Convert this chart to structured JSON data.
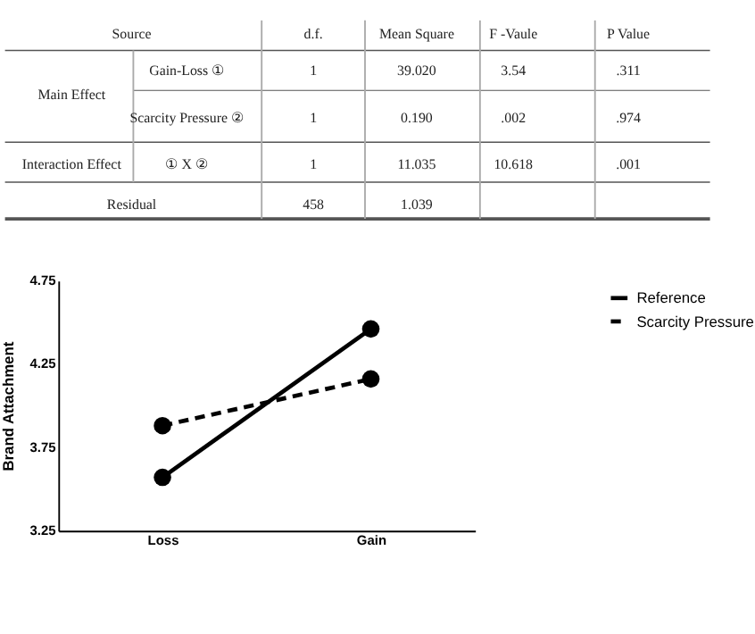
{
  "chart_data": {
    "type": "line",
    "annotations": [
      "Source",
      "d.f.",
      "Mean Square",
      "F -Vaule",
      "P  Value",
      "Main Effect",
      "Gain-Loss ①",
      "1",
      "39.020",
      "3.54",
      ".311",
      "Scarcity Pressure ②",
      "1",
      "0.190",
      ".002",
      ".974",
      "Interaction Effect",
      "①   X ②",
      "1",
      "11.035",
      "10.618",
      ".001",
      "Residual",
      "458",
      "1.039"
    ],
    "ylabel": "Brand Attachment",
    "categories": [
      "Loss",
      "Gain"
    ],
    "series": [
      {
        "name": "Reference",
        "color": "#000000",
        "values": [
          3.57,
          4.46
        ],
        "line_style": "solid"
      },
      {
        "name": "Scarcity Pressure",
        "color": "#000000",
        "values": [
          3.88,
          4.16
        ],
        "line_style": "dashed"
      }
    ],
    "ylim": [
      3.25,
      4.75
    ],
    "yticks": [
      3.25,
      3.75,
      4.25,
      4.75
    ],
    "marker": "circle",
    "grid": false,
    "legend": "top right"
  }
}
